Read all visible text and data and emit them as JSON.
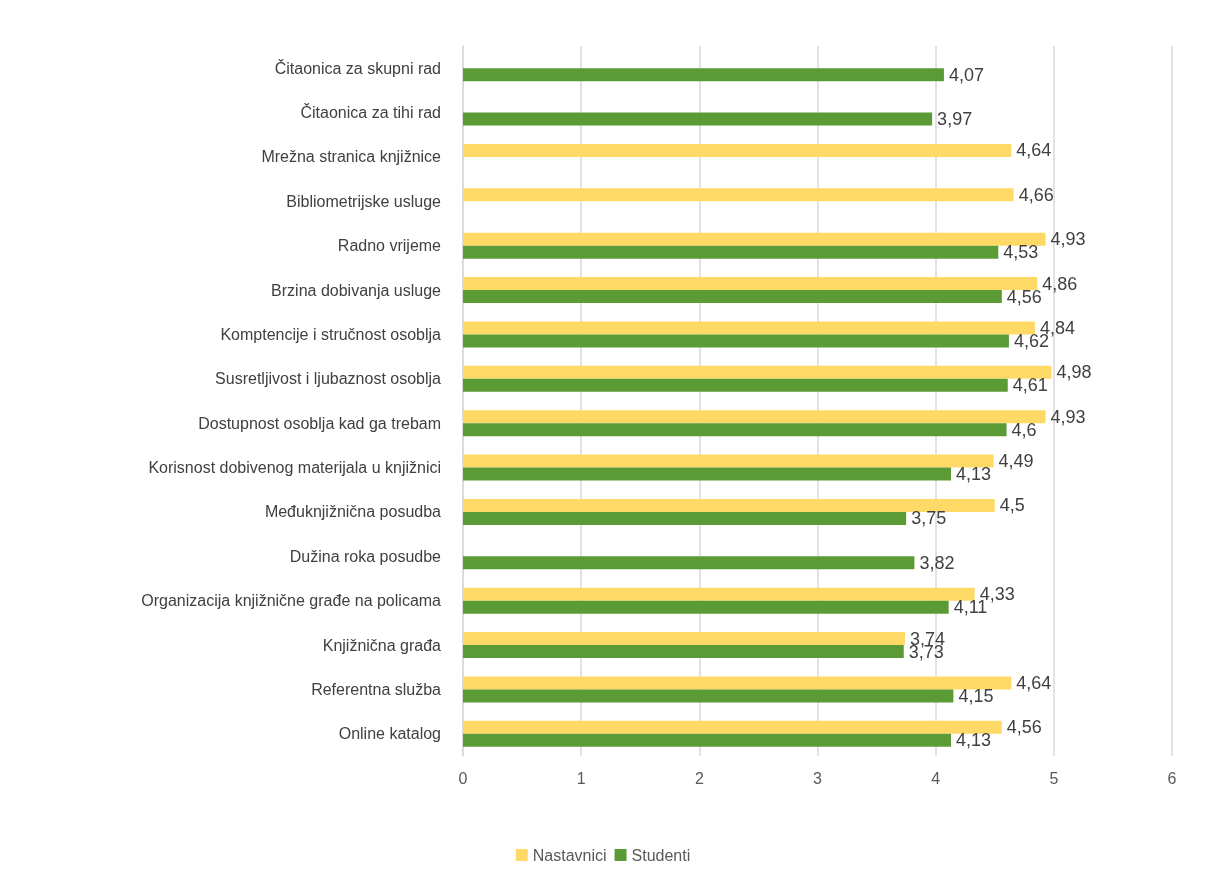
{
  "chart_data": {
    "type": "bar",
    "orientation": "horizontal",
    "categories": [
      "Čitaonica za skupni rad",
      "Čitaonica za tihi rad",
      "Mrežna stranica knjižnice",
      "Bibliometrijske usluge",
      "Radno vrijeme",
      "Brzina dobivanja usluge",
      "Komptencije i stručnost osoblja",
      "Susretljivost i ljubaznost osoblja",
      "Dostupnost osoblja kad ga trebam",
      "Korisnost dobivenog materijala u knjižnici",
      "Međuknjižnična posudba",
      "Dužina roka posudbe",
      "Organizacija knjižnične građe na policama",
      "Knjižnična građa",
      "Referentna služba",
      "Online katalog"
    ],
    "series": [
      {
        "name": "Nastavnici",
        "color": "#ffd966",
        "values": [
          null,
          null,
          4.64,
          4.66,
          4.93,
          4.86,
          4.84,
          4.98,
          4.93,
          4.49,
          4.5,
          null,
          4.33,
          3.74,
          4.64,
          4.56
        ],
        "value_labels": [
          null,
          null,
          "4,64",
          "4,66",
          "4,93",
          "4,86",
          "4,84",
          "4,98",
          "4,93",
          "4,49",
          "4,5",
          null,
          "4,33",
          "3,74",
          "4,64",
          "4,56"
        ]
      },
      {
        "name": "Studenti",
        "color": "#5b9b35",
        "values": [
          4.07,
          3.97,
          null,
          null,
          4.53,
          4.56,
          4.62,
          4.61,
          4.6,
          4.13,
          3.75,
          3.82,
          4.11,
          3.73,
          4.15,
          4.13
        ],
        "value_labels": [
          "4,07",
          "3,97",
          null,
          null,
          "4,53",
          "4,56",
          "4,62",
          "4,61",
          "4,6",
          "4,13",
          "3,75",
          "3,82",
          "4,11",
          "3,73",
          "4,15",
          "4,13"
        ]
      }
    ],
    "xlim": [
      0,
      6
    ],
    "xticks": [
      0,
      1,
      2,
      3,
      4,
      5,
      6
    ],
    "grid": "x",
    "legend": "bottom"
  }
}
